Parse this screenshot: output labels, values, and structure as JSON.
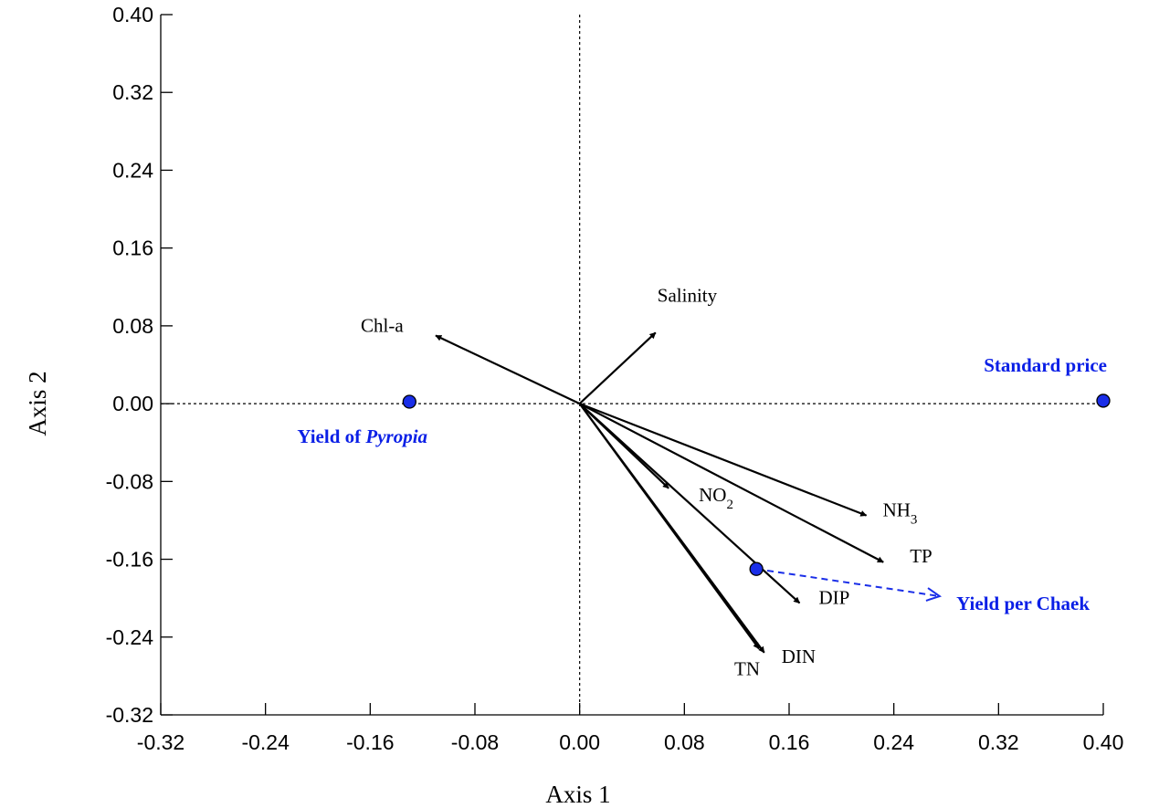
{
  "chart_data": {
    "type": "scatter",
    "title": "",
    "xlabel": "Axis 1",
    "ylabel": "Axis 2",
    "xlim": [
      -0.32,
      0.4
    ],
    "ylim": [
      -0.32,
      0.4
    ],
    "xticks": [
      "-0.32",
      "-0.24",
      "-0.16",
      "-0.08",
      "0.00",
      "0.08",
      "0.16",
      "0.24",
      "0.32",
      "0.40"
    ],
    "yticks": [
      "0.40",
      "0.32",
      "0.24",
      "0.16",
      "0.08",
      "0.00",
      "-0.08",
      "-0.16",
      "-0.24",
      "-0.32"
    ],
    "zero_lines": true,
    "vectors": [
      {
        "name": "Chl-a",
        "label": "Chl-a",
        "sub": "",
        "x": -0.11,
        "y": 0.07
      },
      {
        "name": "Salinity",
        "label": "Salinity",
        "sub": "",
        "x": 0.058,
        "y": 0.073
      },
      {
        "name": "NO2",
        "label": "NO",
        "sub": "2",
        "x": 0.068,
        "y": -0.087
      },
      {
        "name": "NH3",
        "label": "NH",
        "sub": "3",
        "x": 0.219,
        "y": -0.115
      },
      {
        "name": "TP",
        "label": "TP",
        "sub": "",
        "x": 0.232,
        "y": -0.163
      },
      {
        "name": "DIP",
        "label": "DIP",
        "sub": "",
        "x": 0.168,
        "y": -0.205
      },
      {
        "name": "DIN",
        "label": "DIN",
        "sub": "",
        "x": 0.141,
        "y": -0.256
      },
      {
        "name": "TN",
        "label": "TN",
        "sub": "",
        "x": 0.137,
        "y": -0.252
      }
    ],
    "points": [
      {
        "name": "Yield of Pyropia",
        "label": "Yield of ",
        "label_italic": "Pyropia",
        "x": -0.13,
        "y": 0.002
      },
      {
        "name": "Standard price",
        "label": "Standard price",
        "label_italic": "",
        "x": 0.4,
        "y": 0.003
      },
      {
        "name": "Yield per Chaek",
        "label": "Yield per Chaek",
        "label_italic": "",
        "x": 0.135,
        "y": -0.17
      }
    ],
    "projection": {
      "from": "Yield per Chaek",
      "to_x": 0.275,
      "to_y": -0.198,
      "style": "dashed"
    },
    "colors": {
      "axis": "#000000",
      "vector": "#000000",
      "point_fill": "#1a2ee8",
      "point_label": "#0a1fe6"
    }
  }
}
